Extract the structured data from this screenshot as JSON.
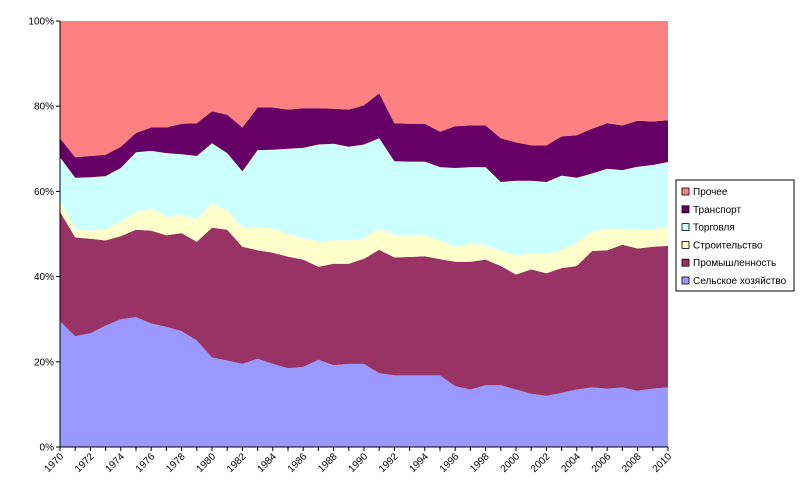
{
  "chart_data": {
    "type": "area",
    "stacked": "percent",
    "grid": false,
    "legend_position": "right",
    "ylim": [
      0,
      100
    ],
    "y_ticks": [
      "0%",
      "20%",
      "40%",
      "60%",
      "80%",
      "100%"
    ],
    "x_tick_labels": [
      "1970",
      "1972",
      "1974",
      "1976",
      "1978",
      "1980",
      "1982",
      "1984",
      "1986",
      "1988",
      "1990",
      "1992",
      "1994",
      "1996",
      "1998",
      "2000",
      "2002",
      "2004",
      "2006",
      "2008",
      "2010"
    ],
    "x": [
      1970,
      1971,
      1972,
      1973,
      1974,
      1975,
      1976,
      1977,
      1978,
      1979,
      1980,
      1981,
      1982,
      1983,
      1984,
      1985,
      1986,
      1987,
      1988,
      1989,
      1990,
      1991,
      1992,
      1993,
      1994,
      1995,
      1996,
      1997,
      1998,
      1999,
      2000,
      2001,
      2002,
      2003,
      2004,
      2005,
      2006,
      2007,
      2008,
      2009,
      2010
    ],
    "series": [
      {
        "name": "Сельское хозяйство",
        "color": "#9999ff",
        "values": [
          29.5,
          26,
          26.7,
          28.5,
          30,
          30.5,
          29,
          28.2,
          27.2,
          25,
          21,
          20.3,
          19.5,
          20.7,
          19.5,
          18.5,
          18.8,
          20.5,
          19.2,
          19.5,
          19.5,
          17.3,
          16.8,
          16.8,
          16.8,
          16.8,
          14.3,
          13.5,
          14.5,
          14.5,
          13.5,
          12.5,
          12,
          12.7,
          13.5,
          14,
          13.7,
          14,
          13.2,
          13.7,
          14
        ]
      },
      {
        "name": "Промышленность",
        "color": "#993366",
        "values": [
          25.7,
          23.2,
          22.2,
          20,
          19.5,
          20.5,
          21.8,
          21.5,
          23,
          23.2,
          30.5,
          30.7,
          27.5,
          25.5,
          26.1,
          26.2,
          25.2,
          21.8,
          23.8,
          23.5,
          24.7,
          29,
          27.7,
          27.8,
          28,
          27.3,
          29.2,
          30,
          29.5,
          28,
          27,
          29.2,
          28.8,
          29.3,
          29,
          32,
          32.5,
          33.5,
          33.4,
          33.3,
          33.2
        ]
      },
      {
        "name": "Строительство",
        "color": "#ffffcc",
        "values": [
          2.8,
          2,
          2,
          2.5,
          3.5,
          4,
          5.2,
          4.3,
          4.3,
          5.3,
          5.8,
          4.5,
          4.5,
          5.5,
          5.7,
          5.3,
          5,
          6,
          5.5,
          5.5,
          4.8,
          5,
          5.3,
          5.2,
          5,
          4.5,
          3.5,
          4.2,
          3.5,
          3.5,
          4.5,
          3.8,
          4.5,
          4.3,
          5.5,
          4.6,
          5.1,
          3.7,
          4.4,
          4.2,
          4.4
        ]
      },
      {
        "name": "Торговля",
        "color": "#ccffff",
        "values": [
          10,
          12,
          12.4,
          12.6,
          12.5,
          14.2,
          13.5,
          15,
          14.2,
          14.8,
          14,
          13.5,
          13.2,
          18,
          18.5,
          20,
          21.2,
          22.7,
          22.7,
          22,
          22,
          21.2,
          17.3,
          17.2,
          17.2,
          17.1,
          18.5,
          18,
          18.2,
          16.2,
          17.5,
          17,
          16.9,
          17.4,
          15.2,
          13.6,
          14,
          13.8,
          14.8,
          15,
          15.3
        ]
      },
      {
        "name": "Транспорт",
        "color": "#660066",
        "values": [
          4.5,
          4.8,
          5,
          5,
          5,
          4.5,
          5.5,
          6,
          7.2,
          7.7,
          7.5,
          9,
          10.3,
          10,
          9.9,
          9.2,
          9.3,
          8.5,
          8.2,
          8.7,
          9.2,
          10.5,
          8.9,
          8.9,
          8.9,
          8.3,
          9.8,
          9.8,
          9.8,
          10.3,
          9,
          8.3,
          8.6,
          9.2,
          10,
          10.5,
          10.7,
          10.5,
          10.8,
          10.2,
          9.8
        ]
      },
      {
        "name": "Прочее",
        "color": "#ff8080",
        "values": [
          27.5,
          32,
          31.7,
          31.4,
          29.5,
          26.3,
          25,
          25,
          24.1,
          24,
          21.2,
          22,
          25,
          20.3,
          20.3,
          20.8,
          20.5,
          20.5,
          20.6,
          20.8,
          19.8,
          17,
          24,
          24.1,
          24.1,
          26,
          24.7,
          24.5,
          24.5,
          27.5,
          28.5,
          29.2,
          29.2,
          27.1,
          26.8,
          25.3,
          24,
          24.5,
          23.4,
          23.6,
          23.3
        ]
      }
    ]
  }
}
